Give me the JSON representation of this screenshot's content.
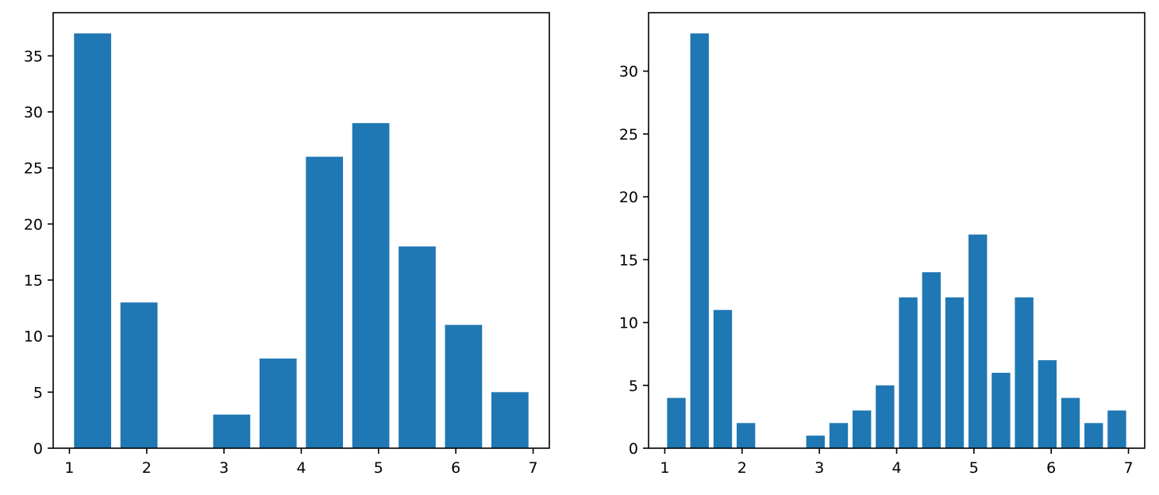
{
  "figure": {
    "bar_color": "#1f77b4",
    "axes_color": "#000000",
    "background": "#ffffff"
  },
  "chart_data": [
    {
      "type": "bar",
      "title": "",
      "xlabel": "",
      "ylabel": "",
      "bin_edges": [
        1.0,
        1.6,
        2.2,
        2.8,
        3.4,
        4.0,
        4.6,
        5.2,
        5.8,
        6.4,
        7.0
      ],
      "values": [
        37,
        13,
        0,
        3,
        8,
        26,
        29,
        18,
        11,
        5
      ],
      "xlim": [
        0.79,
        7.21
      ],
      "ylim": [
        0,
        38.85
      ],
      "xticks": [
        1,
        2,
        3,
        4,
        5,
        6,
        7
      ],
      "yticks": [
        0,
        5,
        10,
        15,
        20,
        25,
        30,
        35
      ],
      "grid": false,
      "legend": false
    },
    {
      "type": "bar",
      "title": "",
      "xlabel": "",
      "ylabel": "",
      "bin_edges": [
        1.0,
        1.3,
        1.6,
        1.9,
        2.2,
        2.5,
        2.8,
        3.1,
        3.4,
        3.7,
        4.0,
        4.3,
        4.6,
        4.9,
        5.2,
        5.5,
        5.8,
        6.1,
        6.4,
        6.7,
        7.0
      ],
      "values": [
        4,
        33,
        11,
        2,
        0,
        0,
        1,
        2,
        3,
        5,
        12,
        14,
        12,
        17,
        6,
        12,
        7,
        4,
        2,
        3
      ],
      "xlim": [
        0.79,
        7.21
      ],
      "ylim": [
        0,
        34.65
      ],
      "xticks": [
        1,
        2,
        3,
        4,
        5,
        6,
        7
      ],
      "yticks": [
        0,
        5,
        10,
        15,
        20,
        25,
        30
      ],
      "grid": false,
      "legend": false
    }
  ]
}
